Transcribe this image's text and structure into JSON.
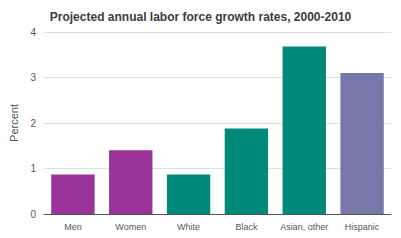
{
  "chart_data": {
    "type": "bar",
    "title": "Projected annual labor force growth rates, 2000-2010",
    "categories": [
      "Men",
      "Women",
      "White",
      "Black",
      "Asian, other",
      "Hispanic"
    ],
    "values": [
      0.87,
      1.4,
      0.87,
      1.88,
      3.68,
      3.1
    ],
    "colors": [
      "#993399",
      "#993399",
      "#008878",
      "#008878",
      "#008878",
      "#7777aa"
    ],
    "ylabel": "Percent",
    "ylim": [
      0,
      4
    ],
    "yticks": [
      0,
      1,
      2,
      3,
      4
    ],
    "grid": true
  }
}
